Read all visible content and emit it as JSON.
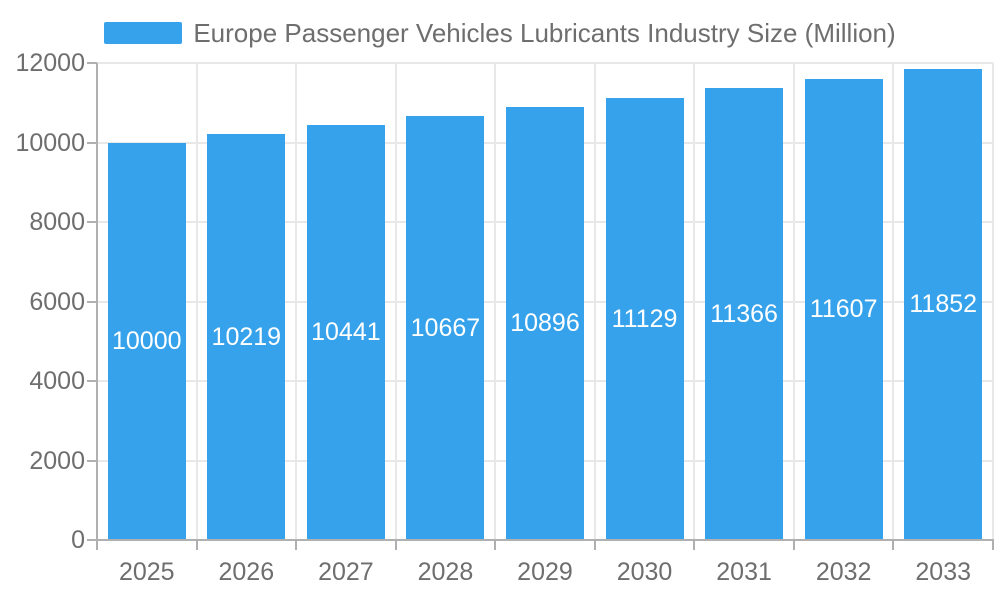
{
  "chart": {
    "legend": {
      "label": "Europe Passenger Vehicles Lubricants Industry Size (Million)"
    }
  },
  "chart_data": {
    "type": "bar",
    "title": "Europe Passenger Vehicles Lubricants Industry Size (Million)",
    "series_name": "Europe Passenger Vehicles Lubricants Industry Size (Million)",
    "categories": [
      "2025",
      "2026",
      "2027",
      "2028",
      "2029",
      "2030",
      "2031",
      "2032",
      "2033"
    ],
    "values": [
      10000,
      10219,
      10441,
      10667,
      10896,
      11129,
      11366,
      11607,
      11852
    ],
    "bar_value_labels": [
      "10000",
      "10219",
      "10441",
      "10667",
      "10896",
      "11129",
      "11366",
      "11607",
      "11852"
    ],
    "xlabel": "",
    "ylabel": "",
    "ylim": [
      0,
      12000
    ],
    "yticks": [
      0,
      2000,
      4000,
      6000,
      8000,
      10000,
      12000
    ],
    "grid": true,
    "legend_position": "top-center",
    "value_label_position": "inside-center",
    "colors": {
      "bar": "#36A2EB",
      "grid": "#e8e8e8",
      "axis": "#b0b0b0",
      "text": "#6e6e6e",
      "bar_label": "#ffffff",
      "background": "#ffffff"
    }
  }
}
